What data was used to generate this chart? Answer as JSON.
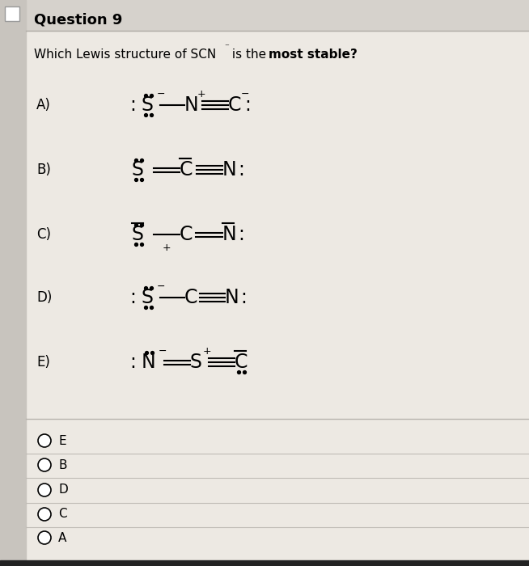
{
  "bg_color": "#ede9e3",
  "text_color": "#000000",
  "title": "Question 9",
  "question_text": "Which Lewis structure of SCN",
  "question_sup": "⁻",
  "question_end": " is the ",
  "question_bold": "most stable?",
  "radio_labels": [
    "E",
    "B",
    "D",
    "C",
    "A"
  ],
  "fig_width": 6.54,
  "fig_height": 7.0,
  "dpi": 100,
  "header_bg": "#d8d4cf",
  "header_text_color": "#000000",
  "sep_color": "#c0bcb6",
  "radio_sep_color": "#c8c4be"
}
